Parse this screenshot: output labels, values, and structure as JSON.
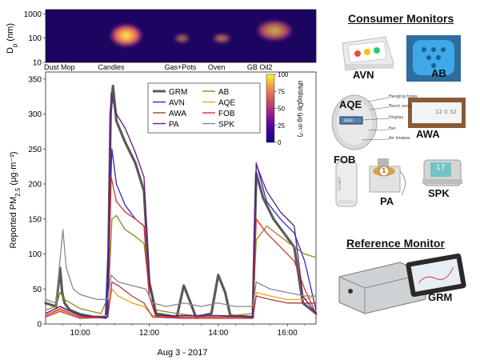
{
  "chart_data": [
    {
      "type": "heatmap",
      "ylabel": "D",
      "ylabel_sub": "p",
      "ylabel_unit": "(nm)",
      "yscale": "log",
      "ylim": [
        10,
        1500
      ],
      "yticks": [
        "1000",
        "100",
        "10"
      ],
      "ytick_values": [
        1000,
        100,
        10
      ],
      "xlim": [
        9.0,
        16.83
      ],
      "events": [
        {
          "label": "Dust Mop",
          "x": 9.4
        },
        {
          "label": "Candles",
          "x": 10.9
        },
        {
          "label": "Gas+Pots",
          "x": 12.9
        },
        {
          "label": "Oven",
          "x": 13.95
        },
        {
          "label": "GB Oil2",
          "x": 15.2
        }
      ],
      "colorbar": {
        "label": "dN/dlogDp (μg·m⁻³)",
        "ticks": [
          "100",
          "75",
          "50",
          "25",
          "0"
        ],
        "range": [
          0,
          100
        ]
      },
      "blobs": [
        {
          "x0": 10.82,
          "x1": 11.85,
          "dp_lo": 40,
          "dp_hi": 420,
          "intensity": 100
        },
        {
          "x0": 12.7,
          "x1": 13.2,
          "dp_lo": 60,
          "dp_hi": 160,
          "intensity": 55
        },
        {
          "x0": 13.8,
          "x1": 14.4,
          "dp_lo": 60,
          "dp_hi": 160,
          "intensity": 60
        },
        {
          "x0": 15.05,
          "x1": 16.2,
          "dp_lo": 70,
          "dp_hi": 600,
          "intensity": 75
        }
      ]
    },
    {
      "type": "line",
      "ylabel": "Reported PM",
      "ylabel_sub": "2.5",
      "ylabel_unit": "(μg·m⁻³)",
      "xlabel": "Aug 3 - 2017",
      "xlim": [
        9.0,
        16.83
      ],
      "ylim": [
        0,
        360
      ],
      "xticks": [
        "10:00",
        "12:00",
        "14:00",
        "16:00"
      ],
      "xtick_values": [
        10,
        12,
        14,
        16
      ],
      "yticks": [
        "0",
        "50",
        "100",
        "150",
        "200",
        "250",
        "300",
        "350"
      ],
      "ytick_values": [
        0,
        50,
        100,
        150,
        200,
        250,
        300,
        350
      ],
      "legend_position": "top-center",
      "series": [
        {
          "name": "GRM",
          "color": "#5a5a5a",
          "width": 3.2,
          "points": [
            [
              9.0,
              30
            ],
            [
              9.3,
              25
            ],
            [
              9.38,
              60
            ],
            [
              9.42,
              80
            ],
            [
              9.48,
              45
            ],
            [
              9.55,
              30
            ],
            [
              9.7,
              20
            ],
            [
              10.0,
              14
            ],
            [
              10.4,
              10
            ],
            [
              10.75,
              10
            ],
            [
              10.82,
              100
            ],
            [
              10.88,
              300
            ],
            [
              10.95,
              340
            ],
            [
              11.05,
              290
            ],
            [
              11.3,
              260
            ],
            [
              11.6,
              230
            ],
            [
              11.85,
              190
            ],
            [
              12.0,
              60
            ],
            [
              12.2,
              15
            ],
            [
              12.8,
              10
            ],
            [
              13.0,
              55
            ],
            [
              13.2,
              30
            ],
            [
              13.35,
              10
            ],
            [
              13.8,
              15
            ],
            [
              14.0,
              70
            ],
            [
              14.2,
              45
            ],
            [
              14.35,
              12
            ],
            [
              15.0,
              10
            ],
            [
              15.05,
              120
            ],
            [
              15.1,
              215
            ],
            [
              15.3,
              180
            ],
            [
              15.6,
              150
            ],
            [
              15.9,
              130
            ],
            [
              16.2,
              110
            ],
            [
              16.45,
              30
            ],
            [
              16.83,
              15
            ]
          ]
        },
        {
          "name": "AB",
          "color": "#8a8a1e",
          "width": 1.3,
          "points": [
            [
              9.0,
              20
            ],
            [
              9.3,
              25
            ],
            [
              9.42,
              45
            ],
            [
              9.55,
              35
            ],
            [
              10.0,
              22
            ],
            [
              10.6,
              15
            ],
            [
              10.82,
              40
            ],
            [
              10.92,
              150
            ],
            [
              11.05,
              155
            ],
            [
              11.3,
              135
            ],
            [
              11.6,
              125
            ],
            [
              11.85,
              115
            ],
            [
              12.0,
              50
            ],
            [
              12.2,
              20
            ],
            [
              12.8,
              15
            ],
            [
              13.3,
              12
            ],
            [
              14.4,
              12
            ],
            [
              15.0,
              15
            ],
            [
              15.1,
              120
            ],
            [
              15.4,
              140
            ],
            [
              15.8,
              125
            ],
            [
              16.2,
              110
            ],
            [
              16.5,
              100
            ],
            [
              16.83,
              95
            ]
          ]
        },
        {
          "name": "AVN",
          "color": "#2a2ad0",
          "width": 1.3,
          "points": [
            [
              9.0,
              15
            ],
            [
              9.42,
              25
            ],
            [
              10.0,
              12
            ],
            [
              10.75,
              8
            ],
            [
              10.85,
              150
            ],
            [
              10.92,
              250
            ],
            [
              11.05,
              200
            ],
            [
              11.3,
              170
            ],
            [
              11.6,
              150
            ],
            [
              11.85,
              140
            ],
            [
              12.0,
              40
            ],
            [
              12.2,
              10
            ],
            [
              13.0,
              12
            ],
            [
              14.0,
              12
            ],
            [
              15.0,
              10
            ],
            [
              15.1,
              230
            ],
            [
              15.4,
              175
            ],
            [
              15.8,
              150
            ],
            [
              16.2,
              130
            ],
            [
              16.5,
              90
            ],
            [
              16.83,
              20
            ]
          ]
        },
        {
          "name": "AQE",
          "color": "#f0a020",
          "width": 1.3,
          "points": [
            [
              9.0,
              12
            ],
            [
              9.42,
              20
            ],
            [
              10.0,
              10
            ],
            [
              10.8,
              12
            ],
            [
              10.92,
              50
            ],
            [
              11.1,
              40
            ],
            [
              11.5,
              30
            ],
            [
              11.85,
              25
            ],
            [
              12.1,
              12
            ],
            [
              13.0,
              8
            ],
            [
              14.0,
              8
            ],
            [
              15.0,
              8
            ],
            [
              15.1,
              45
            ],
            [
              15.5,
              40
            ],
            [
              16.0,
              35
            ],
            [
              16.5,
              35
            ],
            [
              16.83,
              40
            ]
          ]
        },
        {
          "name": "AWA",
          "color": "#a83e3e",
          "width": 1.3,
          "points": [
            [
              9.0,
              10
            ],
            [
              9.42,
              18
            ],
            [
              10.0,
              8
            ],
            [
              10.8,
              10
            ],
            [
              10.92,
              60
            ],
            [
              11.1,
              55
            ],
            [
              11.5,
              40
            ],
            [
              11.85,
              30
            ],
            [
              12.1,
              10
            ],
            [
              13.0,
              8
            ],
            [
              14.0,
              8
            ],
            [
              15.0,
              8
            ],
            [
              15.1,
              40
            ],
            [
              15.5,
              35
            ],
            [
              16.0,
              30
            ],
            [
              16.5,
              30
            ],
            [
              16.83,
              30
            ]
          ]
        },
        {
          "name": "FOB",
          "color": "#e03028",
          "width": 1.3,
          "points": [
            [
              9.0,
              12
            ],
            [
              9.42,
              22
            ],
            [
              10.0,
              10
            ],
            [
              10.8,
              10
            ],
            [
              10.9,
              210
            ],
            [
              11.05,
              175
            ],
            [
              11.3,
              160
            ],
            [
              11.6,
              150
            ],
            [
              11.85,
              140
            ],
            [
              12.0,
              40
            ],
            [
              12.2,
              10
            ],
            [
              13.0,
              10
            ],
            [
              14.0,
              10
            ],
            [
              15.0,
              10
            ],
            [
              15.1,
              150
            ],
            [
              15.4,
              130
            ],
            [
              15.8,
              110
            ],
            [
              16.2,
              90
            ],
            [
              16.5,
              50
            ],
            [
              16.83,
              15
            ]
          ]
        },
        {
          "name": "PA",
          "color": "#5a1d80",
          "width": 1.3,
          "points": [
            [
              9.0,
              15
            ],
            [
              9.42,
              25
            ],
            [
              10.0,
              12
            ],
            [
              10.8,
              10
            ],
            [
              10.9,
              330
            ],
            [
              11.05,
              300
            ],
            [
              11.3,
              280
            ],
            [
              11.6,
              245
            ],
            [
              11.85,
              210
            ],
            [
              12.0,
              60
            ],
            [
              12.2,
              12
            ],
            [
              13.0,
              12
            ],
            [
              14.0,
              12
            ],
            [
              15.0,
              10
            ],
            [
              15.1,
              228
            ],
            [
              15.4,
              190
            ],
            [
              15.8,
              160
            ],
            [
              16.2,
              140
            ],
            [
              16.45,
              40
            ],
            [
              16.83,
              15
            ]
          ]
        },
        {
          "name": "SPK",
          "color": "#888888",
          "width": 1.3,
          "points": [
            [
              9.0,
              35
            ],
            [
              9.3,
              30
            ],
            [
              9.5,
              135
            ],
            [
              9.6,
              80
            ],
            [
              9.8,
              50
            ],
            [
              10.0,
              42
            ],
            [
              10.5,
              35
            ],
            [
              10.8,
              35
            ],
            [
              10.9,
              70
            ],
            [
              11.1,
              60
            ],
            [
              11.5,
              55
            ],
            [
              11.9,
              50
            ],
            [
              12.1,
              30
            ],
            [
              12.5,
              25
            ],
            [
              13.0,
              30
            ],
            [
              13.5,
              25
            ],
            [
              14.0,
              30
            ],
            [
              14.5,
              25
            ],
            [
              15.0,
              25
            ],
            [
              15.1,
              60
            ],
            [
              15.5,
              50
            ],
            [
              16.0,
              45
            ],
            [
              16.5,
              40
            ],
            [
              16.83,
              40
            ]
          ]
        }
      ]
    }
  ],
  "panels": {
    "consumer_title": "Consumer Monitors",
    "reference_title": "Reference Monitor"
  },
  "devices": [
    {
      "key": "avn",
      "label": "AVN"
    },
    {
      "key": "ab",
      "label": "AB"
    },
    {
      "key": "aqe",
      "label": "AQE"
    },
    {
      "key": "awa",
      "label": "AWA"
    },
    {
      "key": "fob",
      "label": "FOB"
    },
    {
      "key": "pa",
      "label": "PA"
    },
    {
      "key": "spk",
      "label": "SPK"
    },
    {
      "key": "grm",
      "label": "GRM"
    }
  ],
  "aqe_annotations": [
    "Hanging holes",
    "Touch zone",
    "Display",
    "Fan",
    "Air Intakes"
  ],
  "pa_badge": "1",
  "spk_screen": "17",
  "awa_screen": "12 0 32",
  "fob_text": "FOOBOT",
  "aqe_screen": "aqe"
}
